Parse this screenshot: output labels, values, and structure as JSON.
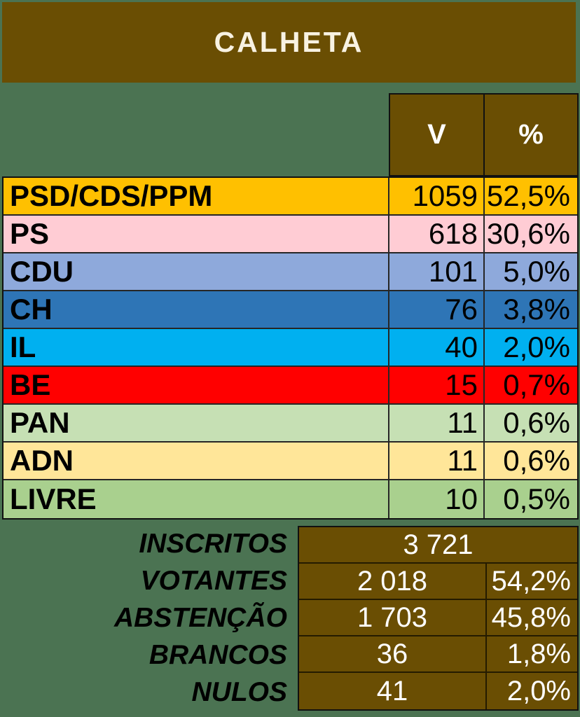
{
  "title": "CALHETA",
  "columns": {
    "votes": "V",
    "pct": "%"
  },
  "colors": {
    "background": "#4B7352",
    "panel_brown": "#6A4E03",
    "title_text": "#F8F2E2",
    "table_text": "#000000",
    "summary_text": "#FFFFFF"
  },
  "parties": [
    {
      "name": "PSD/CDS/PPM",
      "votes": "1059",
      "pct": "52,5%",
      "color": "#FFC000"
    },
    {
      "name": "PS",
      "votes": "618",
      "pct": "30,6%",
      "color": "#FFCCD4"
    },
    {
      "name": "CDU",
      "votes": "101",
      "pct": "5,0%",
      "color": "#8EA9DB"
    },
    {
      "name": "CH",
      "votes": "76",
      "pct": "3,8%",
      "color": "#2E75B6"
    },
    {
      "name": "IL",
      "votes": "40",
      "pct": "2,0%",
      "color": "#00B0F0"
    },
    {
      "name": "BE",
      "votes": "15",
      "pct": "0,7%",
      "color": "#FF0000"
    },
    {
      "name": "PAN",
      "votes": "11",
      "pct": "0,6%",
      "color": "#C6E0B4"
    },
    {
      "name": "ADN",
      "votes": "11",
      "pct": "0,6%",
      "color": "#FFE699"
    },
    {
      "name": "LIVRE",
      "votes": "10",
      "pct": "0,5%",
      "color": "#A9D08E"
    }
  ],
  "summary": [
    {
      "label": "INSCRITOS",
      "value": "3 721",
      "pct": ""
    },
    {
      "label": "VOTANTES",
      "value": "2 018",
      "pct": "54,2%"
    },
    {
      "label": "ABSTENÇÃO",
      "value": "1 703",
      "pct": "45,8%"
    },
    {
      "label": "BRANCOS",
      "value": "36",
      "pct": "1,8%"
    },
    {
      "label": "NULOS",
      "value": "41",
      "pct": "2,0%"
    }
  ],
  "chart_data": {
    "type": "table",
    "title": "CALHETA",
    "columns": [
      "Party",
      "V",
      "%"
    ],
    "rows": [
      [
        "PSD/CDS/PPM",
        1059,
        52.5
      ],
      [
        "PS",
        618,
        30.6
      ],
      [
        "CDU",
        101,
        5.0
      ],
      [
        "CH",
        76,
        3.8
      ],
      [
        "IL",
        40,
        2.0
      ],
      [
        "BE",
        15,
        0.7
      ],
      [
        "PAN",
        11,
        0.6
      ],
      [
        "ADN",
        11,
        0.6
      ],
      [
        "LIVRE",
        10,
        0.5
      ]
    ],
    "summary": {
      "INSCRITOS": 3721,
      "VOTANTES": {
        "value": 2018,
        "pct": 54.2
      },
      "ABSTENCAO": {
        "value": 1703,
        "pct": 45.8
      },
      "BRANCOS": {
        "value": 36,
        "pct": 1.8
      },
      "NULOS": {
        "value": 41,
        "pct": 2.0
      }
    }
  }
}
